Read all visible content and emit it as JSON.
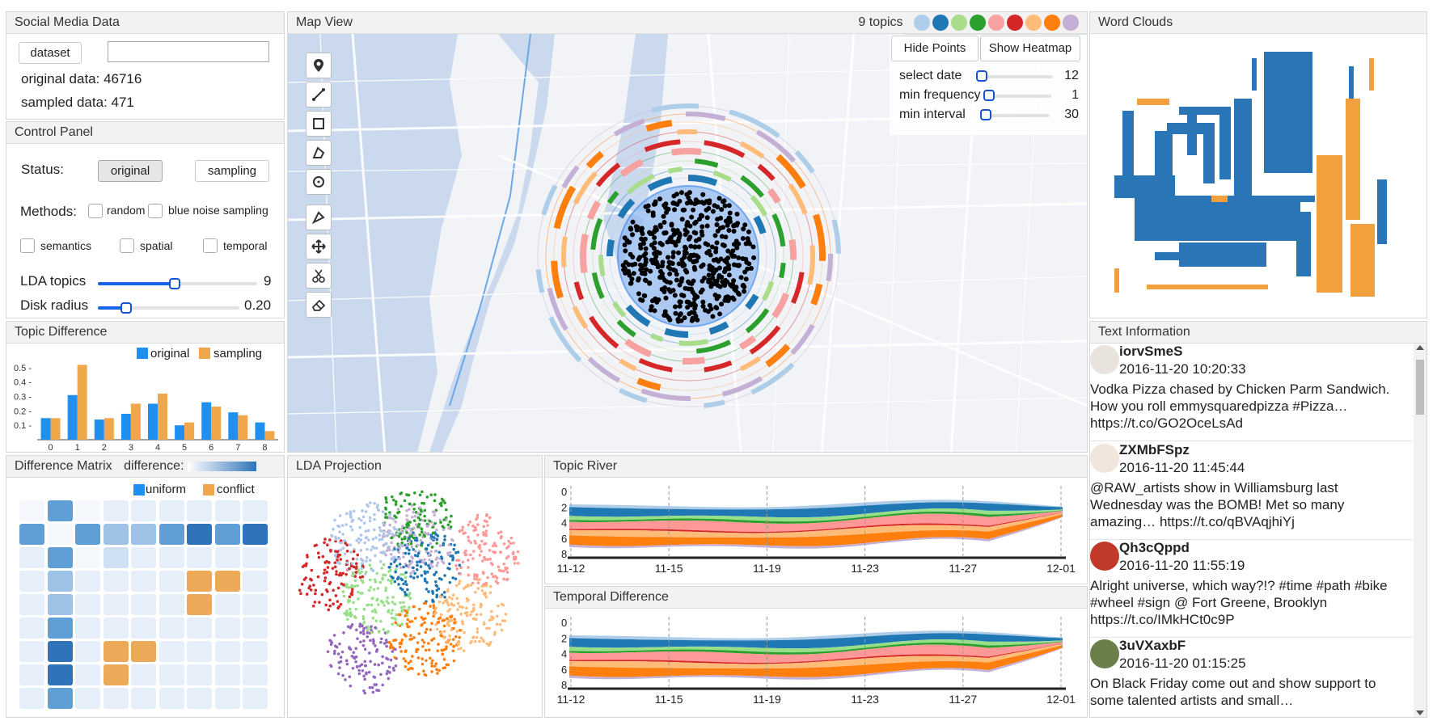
{
  "social_media": {
    "title": "Social Media Data",
    "dataset_button": "dataset",
    "dataset_input_value": "",
    "original_label": "original data: 46716",
    "sampled_label": "sampled data: 471"
  },
  "control_panel": {
    "title": "Control Panel",
    "status_label": "Status:",
    "original_button": "original",
    "sampling_button": "sampling",
    "methods_label": "Methods:",
    "random_label": "random",
    "blue_noise_label": "blue noise sampling",
    "semantics_label": "semantics",
    "spatial_label": "spatial",
    "temporal_label": "temporal",
    "lda_label": "LDA topics",
    "lda_value": "9",
    "lda_fraction": 0.48,
    "disk_label": "Disk radius",
    "disk_value": "0.20",
    "disk_fraction": 0.2
  },
  "topic_difference": {
    "title": "Topic Difference",
    "legend_original": "original",
    "legend_sampling": "sampling",
    "colors": {
      "original": "#1f8ff0",
      "sampling": "#f0a64a"
    }
  },
  "chart_data": {
    "type": "bar",
    "categories": [
      "0",
      "1",
      "2",
      "3",
      "4",
      "5",
      "6",
      "7",
      "8"
    ],
    "series": [
      {
        "name": "original",
        "values": [
          0.15,
          0.31,
          0.14,
          0.18,
          0.25,
          0.1,
          0.26,
          0.19,
          0.12
        ]
      },
      {
        "name": "sampling",
        "values": [
          0.15,
          0.52,
          0.15,
          0.25,
          0.32,
          0.12,
          0.23,
          0.17,
          0.06
        ]
      }
    ],
    "yticks": [
      "0.1 -",
      "0.2 -",
      "0.3 -",
      "0.4 -",
      "0.5 -"
    ],
    "ylim": [
      0,
      0.55
    ]
  },
  "difference_matrix": {
    "title": "Difference Matrix",
    "difference_label": "difference:",
    "legend_uniform": "uniform",
    "legend_conflict": "conflict",
    "levels": [
      [
        0,
        4,
        0,
        1,
        1,
        1,
        1,
        1,
        1
      ],
      [
        4,
        0,
        4,
        3,
        3,
        4,
        5,
        4,
        5
      ],
      [
        1,
        4,
        0,
        2,
        1,
        1,
        1,
        1,
        1
      ],
      [
        1,
        3,
        1,
        1,
        1,
        1,
        9,
        9,
        1
      ],
      [
        1,
        3,
        1,
        1,
        1,
        1,
        9,
        1,
        1
      ],
      [
        1,
        4,
        1,
        1,
        1,
        1,
        1,
        1,
        1
      ],
      [
        1,
        5,
        1,
        9,
        9,
        1,
        1,
        1,
        1
      ],
      [
        1,
        5,
        1,
        9,
        1,
        1,
        1,
        1,
        1
      ],
      [
        1,
        4,
        1,
        1,
        1,
        1,
        1,
        1,
        1
      ]
    ]
  },
  "map_view": {
    "title": "Map View",
    "topics_label": "9 topics",
    "topic_colors": [
      "#aecde8",
      "#1f77b4",
      "#a9dd8c",
      "#2ca02c",
      "#f7a1a1",
      "#d62728",
      "#ffbb78",
      "#ff7f0e",
      "#c5b0d5"
    ],
    "hide_points_button": "Hide Points",
    "show_heatmap_button": "Show Heatmap",
    "select_date_label": "select date",
    "select_date_value": "12",
    "select_date_fraction": 0.04,
    "min_frequency_label": "min frequency",
    "min_frequency_value": "1",
    "min_frequency_fraction": 0.04,
    "min_interval_label": "min interval",
    "min_interval_value": "30",
    "min_interval_fraction": 0.04
  },
  "word_clouds": {
    "title": "Word Clouds"
  },
  "text_information": {
    "title": "Text Information",
    "tweets": [
      {
        "user": "iorvSmeS",
        "time": "2016-11-20 10:20:33",
        "text": "Vodka Pizza chased by Chicken Parm Sandwich. How you roll emmysquaredpizza #Pizza… https://t.co/GO2OceLsAd"
      },
      {
        "user": "ZXMbFSpz",
        "time": "2016-11-20 11:45:44",
        "text": "@RAW_artists show in Williamsburg last Wednesday was the BOMB! Met so many amazing… https://t.co/qBVAqjhiYj"
      },
      {
        "user": "Qh3cQppd",
        "time": "2016-11-20 11:55:19",
        "text": "Alright universe, which way?!? #time #path #bike #wheel #sign @ Fort Greene, Brooklyn https://t.co/IMkHCt0c9P"
      },
      {
        "user": "3uVXaxbF",
        "time": "2016-11-20 01:15:25",
        "text": "On Black Friday come out and show support to some talented artists and small…"
      }
    ]
  },
  "lda_projection": {
    "title": "LDA Projection"
  },
  "topic_river": {
    "title": "Topic River",
    "xticks": [
      "11-12",
      "11-15",
      "11-19",
      "11-23",
      "11-27",
      "12-01"
    ],
    "yticks": [
      "0",
      "2",
      "4",
      "6",
      "8"
    ]
  },
  "temporal_difference": {
    "title": "Temporal Difference",
    "xticks": [
      "11-12",
      "11-15",
      "11-19",
      "11-23",
      "11-27",
      "12-01"
    ],
    "yticks": [
      "0",
      "2",
      "4",
      "6",
      "8"
    ]
  }
}
